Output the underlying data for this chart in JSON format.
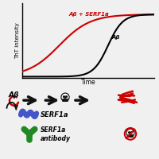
{
  "background_color": "#f0f0f0",
  "top_panel": {
    "x_label": "Time",
    "y_label": "ThT intensity",
    "ab_serf_color": "#cc0000",
    "ab_color": "#000000",
    "ab_serf_label": "Aβ + SERF1a",
    "ab_label": "Aβ",
    "axes_color": "#000000"
  },
  "bottom_panel": {
    "ab_label": "Aβ",
    "serf1a_label": "SERF1a",
    "antibody_label": "SERF1a\nantibody",
    "ab_color": "#cc0000",
    "serf_color": "#4455cc",
    "antibody_color": "#228822",
    "arrow_color": "#111111",
    "fibril_color": "#cc0000",
    "skull_color": "#111111"
  }
}
